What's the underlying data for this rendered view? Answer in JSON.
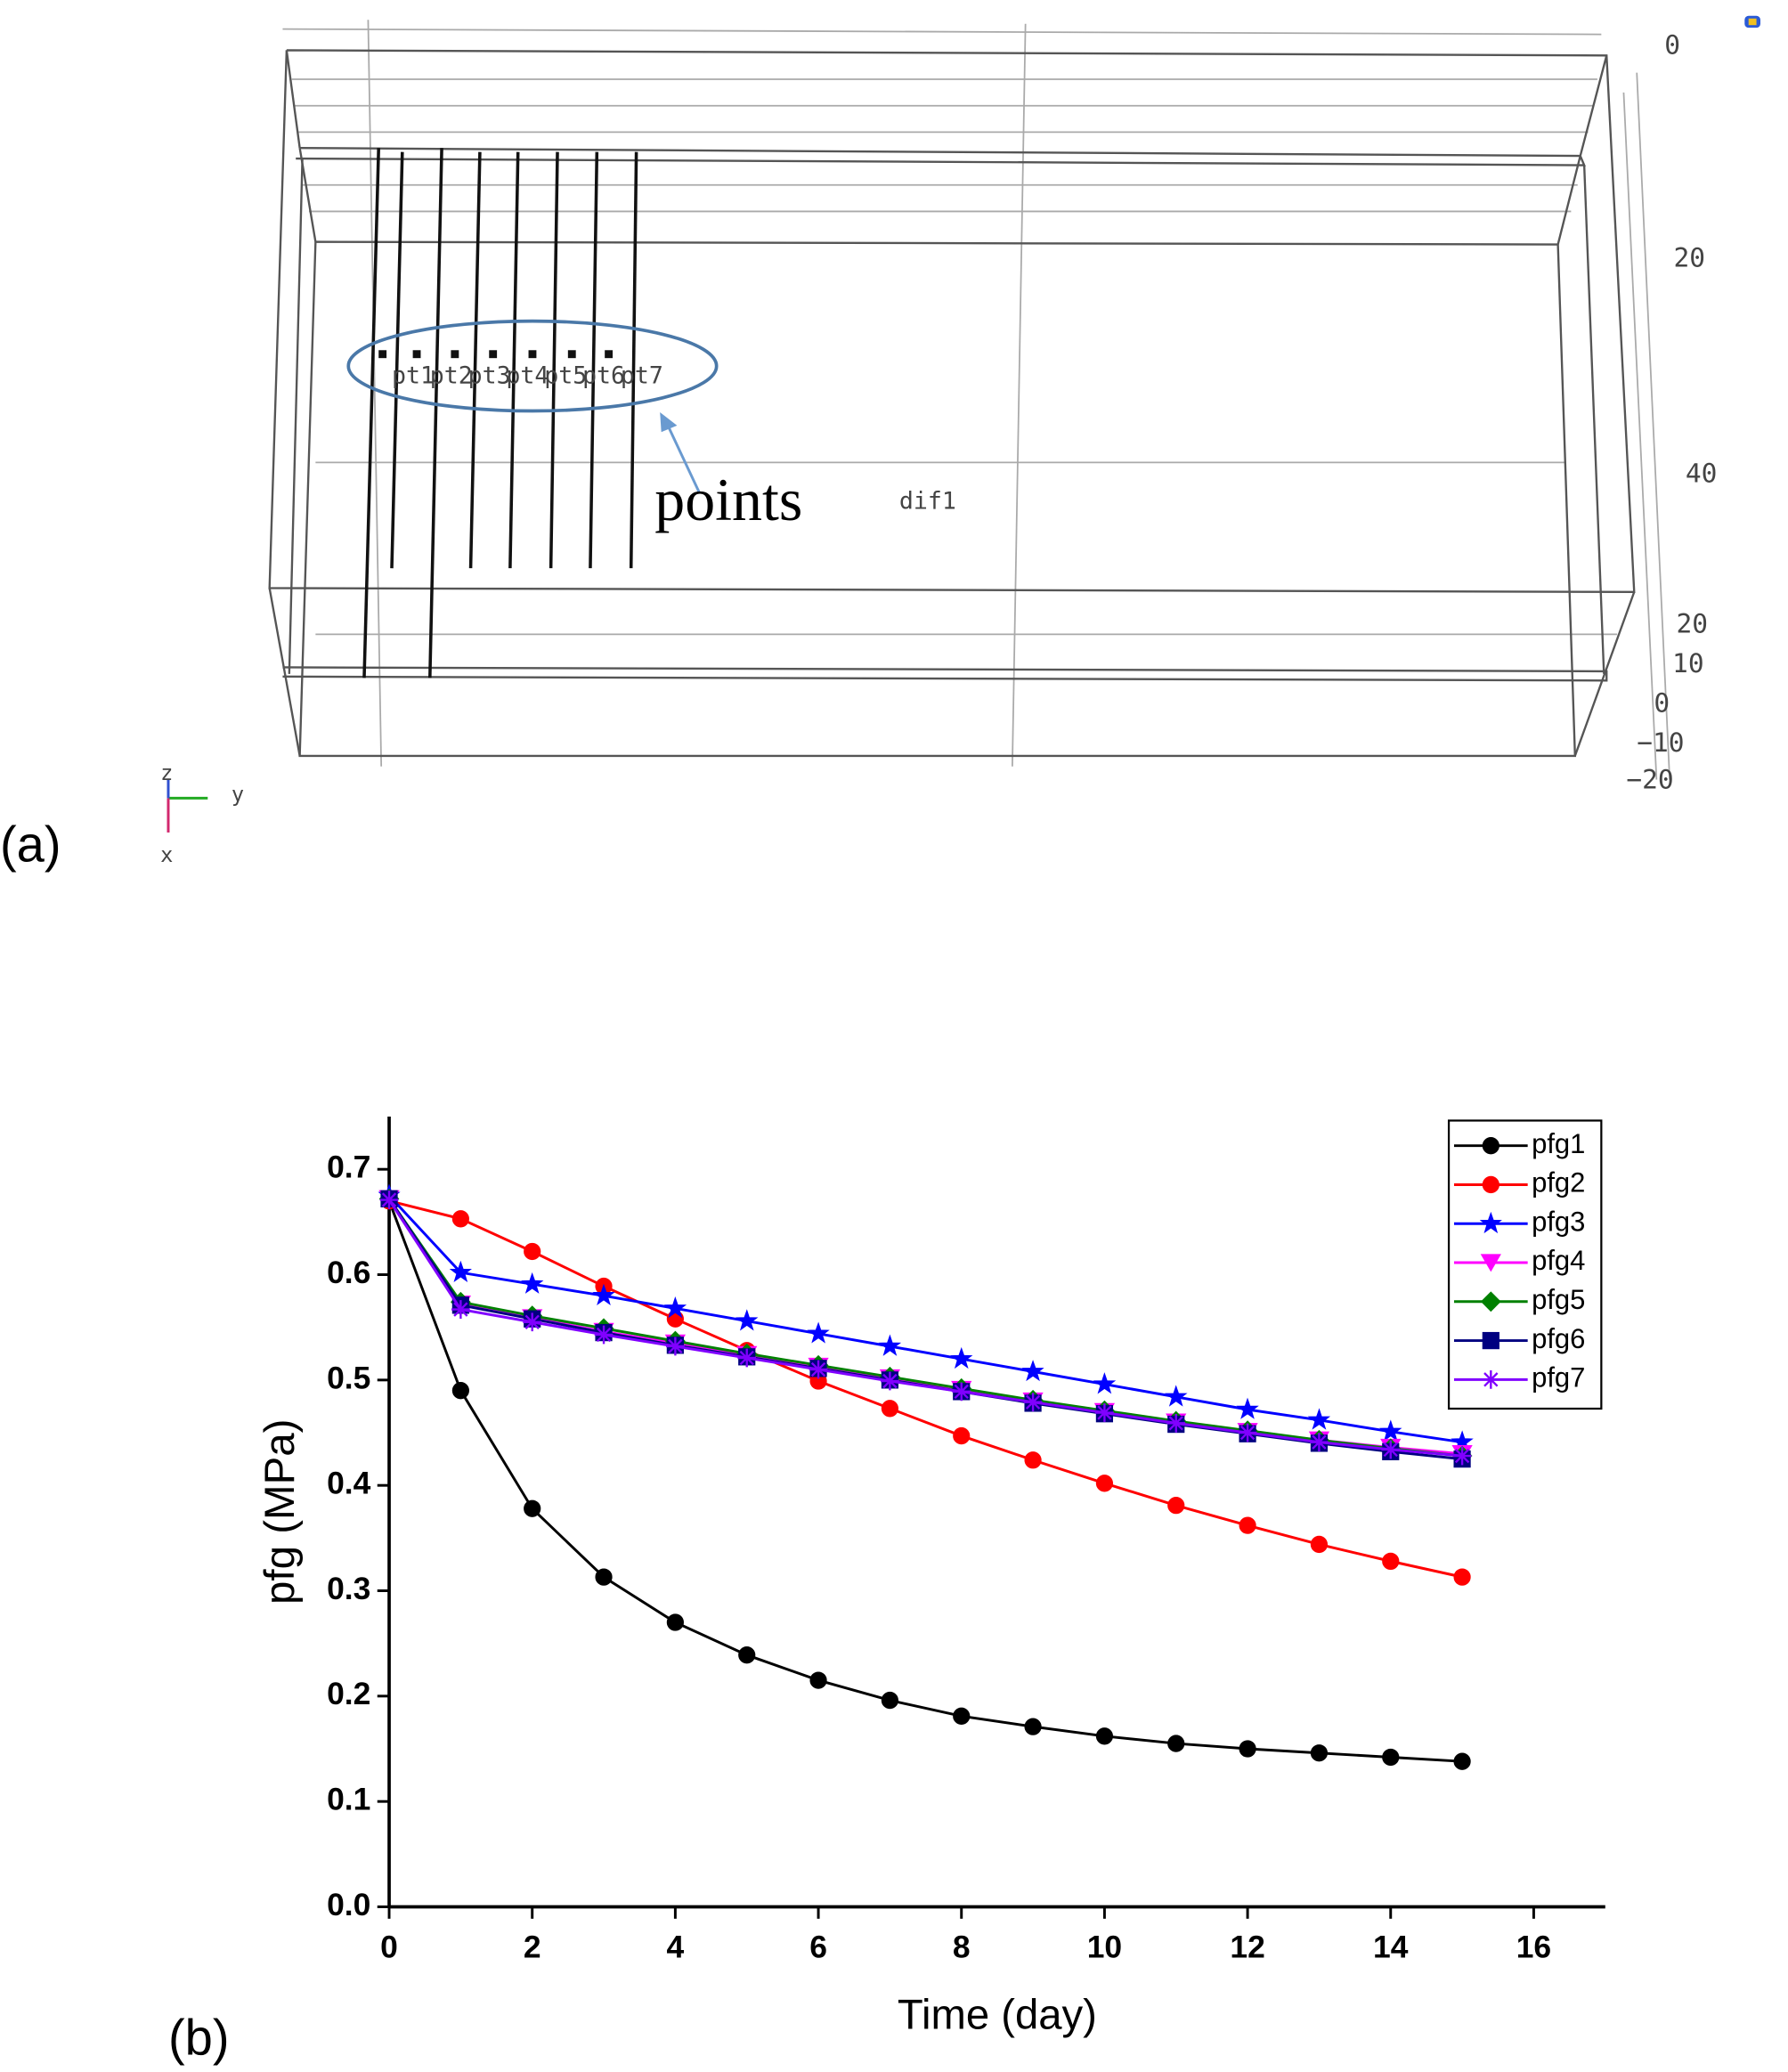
{
  "panel_a": {
    "label": "(a)",
    "annotation": "points",
    "domain_label": "dif1",
    "point_labels": [
      "pt1",
      "pt2",
      "pt3",
      "pt4",
      "pt5",
      "pt6",
      "pt7"
    ],
    "axis_labels": [
      "0",
      "20",
      "40",
      "20",
      "10",
      "0",
      "−10",
      "−20"
    ],
    "triad": [
      "z",
      "y",
      "x"
    ]
  },
  "chart_data": {
    "type": "line",
    "panel_label": "(b)",
    "x_label": "Time (day)",
    "y_label": "pfg (MPa)",
    "x": [
      0,
      1,
      2,
      3,
      4,
      5,
      6,
      7,
      8,
      9,
      10,
      11,
      12,
      13,
      14,
      15
    ],
    "xlim": [
      0,
      17
    ],
    "xticks": [
      0,
      2,
      4,
      6,
      8,
      10,
      12,
      14,
      16
    ],
    "ylim": [
      0,
      0.75
    ],
    "yticks": [
      {
        "value": 0,
        "label": "0.0"
      },
      0.1,
      0.2,
      0.3,
      0.4,
      0.5,
      0.6,
      0.7
    ],
    "legend": "upper right",
    "series": [
      {
        "name": "pfg1",
        "color": "#000000",
        "marker": "circle",
        "values": [
          0.67,
          0.49,
          0.378,
          0.313,
          0.27,
          0.239,
          0.215,
          0.196,
          0.181,
          0.171,
          0.162,
          0.155,
          0.15,
          0.146,
          0.142,
          0.138
        ]
      },
      {
        "name": "pfg2",
        "color": "#ff0000",
        "marker": "circle",
        "values": [
          0.67,
          0.653,
          0.622,
          0.589,
          0.558,
          0.528,
          0.499,
          0.473,
          0.447,
          0.424,
          0.402,
          0.381,
          0.362,
          0.344,
          0.328,
          0.313
        ]
      },
      {
        "name": "pfg3",
        "color": "#0000ff",
        "marker": "star",
        "values": [
          0.675,
          0.602,
          0.591,
          0.58,
          0.568,
          0.556,
          0.544,
          0.532,
          0.52,
          0.508,
          0.496,
          0.484,
          0.472,
          0.462,
          0.451,
          0.441
        ]
      },
      {
        "name": "pfg4",
        "color": "#ff00ff",
        "marker": "triangle-down",
        "values": [
          0.672,
          0.572,
          0.559,
          0.546,
          0.535,
          0.524,
          0.513,
          0.502,
          0.491,
          0.48,
          0.47,
          0.46,
          0.451,
          0.443,
          0.436,
          0.43
        ]
      },
      {
        "name": "pfg5",
        "color": "#008000",
        "marker": "diamond",
        "values": [
          0.672,
          0.574,
          0.561,
          0.549,
          0.537,
          0.525,
          0.514,
          0.503,
          0.492,
          0.481,
          0.471,
          0.461,
          0.452,
          0.443,
          0.435,
          0.428
        ]
      },
      {
        "name": "pfg6",
        "color": "#000080",
        "marker": "square",
        "values": [
          0.672,
          0.571,
          0.558,
          0.545,
          0.533,
          0.522,
          0.511,
          0.5,
          0.489,
          0.478,
          0.468,
          0.458,
          0.449,
          0.44,
          0.432,
          0.425
        ]
      },
      {
        "name": "pfg7",
        "color": "#8000ff",
        "marker": "asterisk",
        "values": [
          0.671,
          0.567,
          0.555,
          0.543,
          0.532,
          0.521,
          0.51,
          0.499,
          0.489,
          0.479,
          0.469,
          0.459,
          0.45,
          0.441,
          0.434,
          0.428
        ]
      }
    ]
  }
}
